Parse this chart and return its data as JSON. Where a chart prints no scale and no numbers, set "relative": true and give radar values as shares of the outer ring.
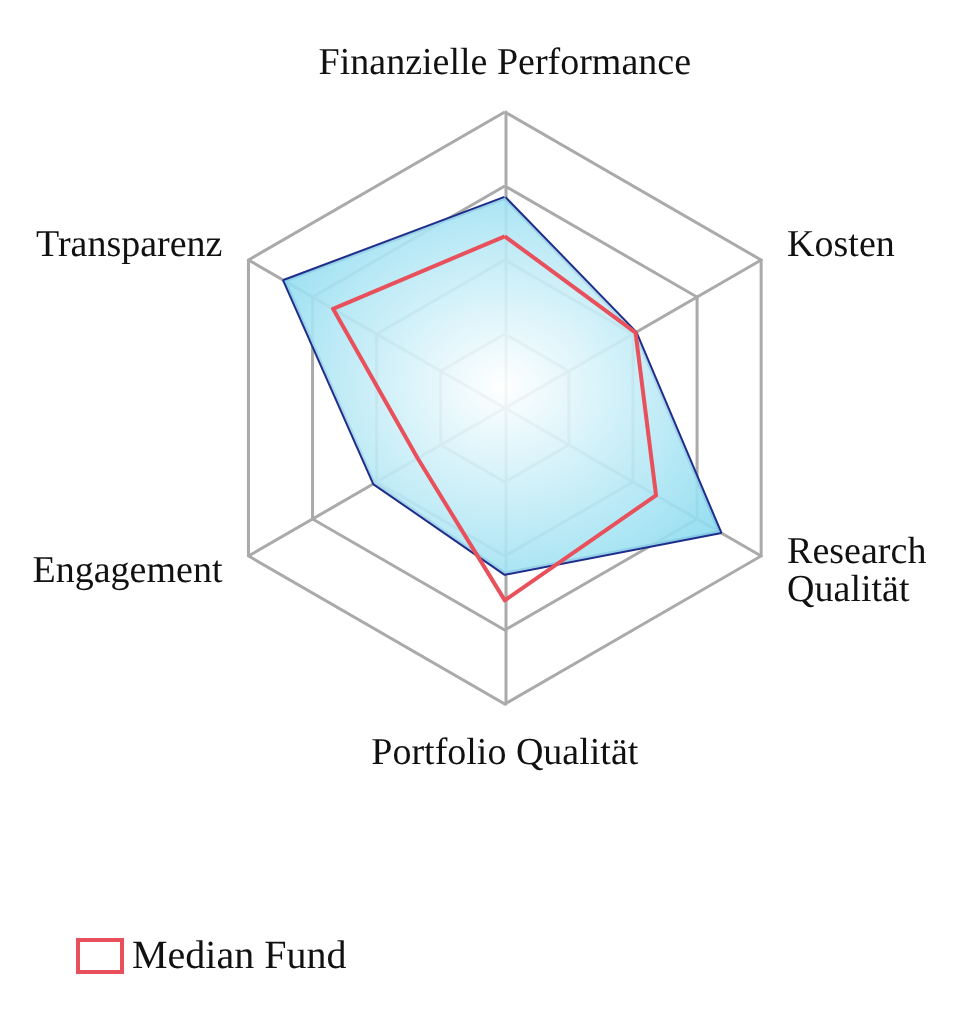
{
  "chart_data": {
    "type": "radar",
    "relative": true,
    "categories": [
      "Finanzielle Performance",
      "Kosten",
      "Research\nQualität",
      "Portfolio Qualität",
      "Engagement",
      "Transparenz"
    ],
    "series": [
      {
        "type": "area",
        "color": "#1f2d8a",
        "values": [
          0.71,
          0.51,
          0.84,
          0.56,
          0.51,
          0.86
        ]
      },
      {
        "name": "Median Fund",
        "color": "#e8505b",
        "values": [
          0.58,
          0.51,
          0.59,
          0.65,
          0.34,
          0.67
        ]
      }
    ],
    "legend": "bottom left"
  }
}
